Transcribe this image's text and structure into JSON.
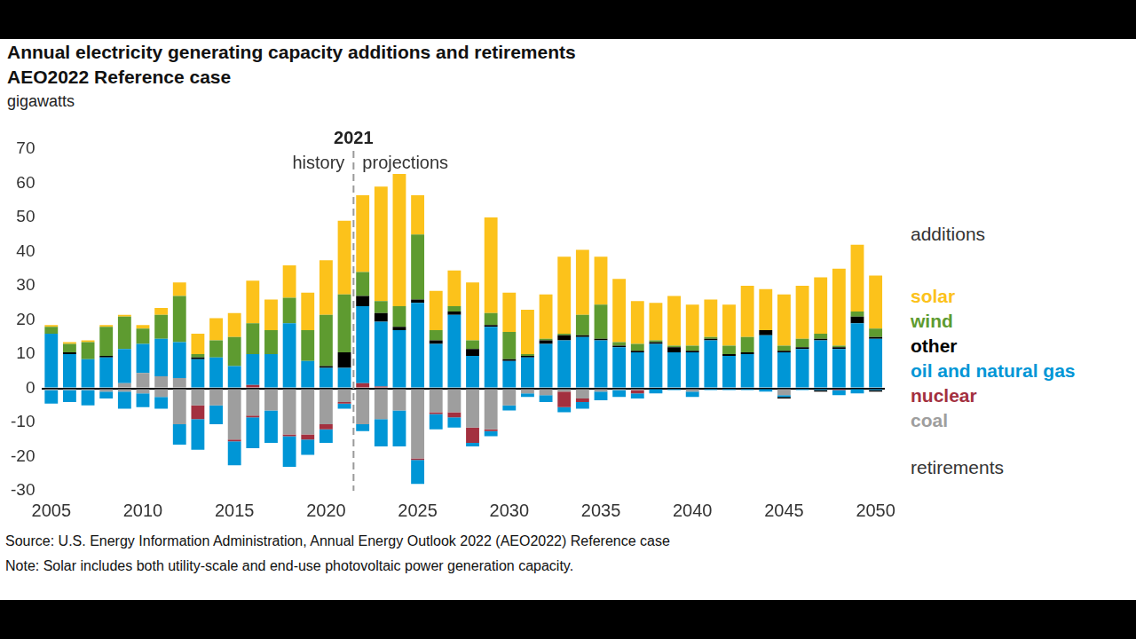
{
  "chart_data": {
    "type": "bar",
    "title": "Annual electricity generating capacity additions and retirements",
    "subtitle": "AEO2022 Reference case",
    "y_label": "gigawatts",
    "source": "Source: U.S. Energy Information Administration, Annual Energy Outlook 2022 (AEO2022) Reference case",
    "note": "Note: Solar includes both utility-scale and end-use photovoltaic power generation capacity.",
    "stacked": true,
    "grid": false,
    "legend": "right",
    "annotations": {
      "divider": {
        "value": 2021,
        "label": "2021"
      },
      "left_text": "history",
      "right_text": "projections",
      "upper_text": "additions",
      "lower_text": "retirements"
    },
    "categories": [
      "2005",
      null,
      null,
      null,
      null,
      "2010",
      null,
      null,
      null,
      null,
      "2015",
      null,
      null,
      null,
      null,
      "2020",
      null,
      null,
      null,
      null,
      "2025",
      null,
      null,
      null,
      null,
      "2030",
      null,
      null,
      null,
      null,
      "2035",
      null,
      null,
      null,
      null,
      "2040",
      null,
      null,
      null,
      null,
      "2045",
      null,
      null,
      null,
      null,
      "2050"
    ],
    "ylim": [
      -30,
      70
    ],
    "yticks": [
      -30,
      -20,
      -10,
      0,
      10,
      20,
      30,
      40,
      50,
      60,
      70
    ],
    "series": [
      {
        "name": "solar",
        "color": "#fcc21b",
        "values": [
          0.5,
          0.5,
          0.5,
          0.5,
          0.5,
          1,
          2,
          4,
          6,
          6.5,
          7,
          12.5,
          9,
          9.5,
          11,
          16,
          21.5,
          22.5,
          33.5,
          40,
          11.5,
          11.5,
          10.5,
          17,
          28,
          11.5,
          13,
          13,
          22.5,
          19,
          14,
          18.5,
          12.5,
          11,
          14.5,
          12,
          11,
          12,
          15,
          12,
          15,
          15.5,
          16.5,
          22.5,
          19.5,
          15.5
        ]
      },
      {
        "name": "wind",
        "color": "#5e9b30",
        "values": [
          2,
          2.5,
          5,
          8.5,
          9.5,
          4.5,
          7,
          13.5,
          1,
          5,
          8.5,
          9,
          7,
          7.5,
          9,
          15,
          17,
          7,
          3.5,
          6,
          19,
          3,
          1.5,
          2.5,
          3.5,
          8,
          0.5,
          0.5,
          0.5,
          6,
          10,
          1,
          2,
          0.5,
          0.5,
          1.5,
          0.5,
          2.5,
          4.5,
          0,
          1.5,
          2.5,
          1.5,
          0.5,
          1.5,
          2.5
        ]
      },
      {
        "name": "other",
        "color": "#000000",
        "values": [
          0,
          0.5,
          0,
          0.5,
          0,
          0,
          0,
          0,
          0.5,
          0,
          0,
          0,
          0,
          0,
          0,
          0.5,
          4.5,
          3,
          2.5,
          1,
          1,
          1,
          1,
          2,
          0.5,
          0.5,
          0.5,
          1,
          1.5,
          0.5,
          0.5,
          0.5,
          0.5,
          0.5,
          1.5,
          0.5,
          0.5,
          0.5,
          0.5,
          1.5,
          0.5,
          0.5,
          0.5,
          0.5,
          2,
          0.5
        ],
        "retirements": [
          0,
          0,
          0,
          0,
          0,
          0,
          0,
          0,
          0,
          0,
          0,
          0,
          0,
          0,
          0,
          0,
          0,
          0,
          0,
          0,
          0,
          0,
          0,
          0,
          0,
          0,
          0,
          0,
          0,
          0,
          0,
          0,
          0,
          0,
          0,
          0,
          0,
          0,
          0,
          0,
          -0.5,
          0,
          -0.5,
          0,
          0,
          -0.5
        ]
      },
      {
        "name": "oil and natural gas",
        "color": "#0096d6",
        "values": [
          16,
          10,
          8.5,
          9,
          10,
          8.5,
          11,
          10.5,
          8.5,
          9,
          6.5,
          9,
          10,
          19,
          8,
          6,
          6,
          22.5,
          19,
          17,
          25,
          13,
          21.5,
          9.5,
          18,
          8,
          9,
          13,
          14,
          15,
          14,
          12,
          10.5,
          13,
          10.5,
          10.5,
          14,
          9.5,
          10,
          15.5,
          10.5,
          11.5,
          14,
          11.5,
          19,
          14.5
        ],
        "retirements": [
          -4,
          -3.5,
          -4.5,
          -2,
          -5,
          -4,
          -3.5,
          -6,
          -9,
          -5.5,
          -7,
          -9,
          -9.5,
          -9,
          -4.5,
          -4,
          -1.5,
          -2,
          -8,
          -10.5,
          -7,
          -4.5,
          -3,
          -1,
          -1.5,
          -1.5,
          -1,
          -2,
          -1.5,
          -2,
          -2.5,
          -2,
          -1.5,
          -1.5,
          -0.5,
          -1.5,
          -0.5,
          -0.5,
          -0.5,
          -1,
          -0.5,
          -0.5,
          -0.5,
          -1.5,
          -1.5,
          -0.5
        ]
      },
      {
        "name": "nuclear",
        "color": "#a3303f",
        "values": [
          0,
          0,
          0,
          0,
          0,
          0,
          0,
          0,
          0,
          0,
          0,
          1,
          0,
          0,
          0,
          0,
          0,
          1.5,
          0.5,
          0,
          0,
          0,
          0,
          0,
          0,
          0,
          0,
          0,
          0,
          0,
          0,
          0,
          0,
          0,
          0,
          0,
          0,
          0,
          0,
          0,
          0,
          0,
          0,
          0,
          0,
          0
        ],
        "retirements": [
          0,
          0,
          0,
          0,
          0,
          0,
          0,
          0,
          -4,
          0,
          -0.5,
          -0.5,
          0,
          -0.5,
          -1.5,
          -1.5,
          -0.5,
          0,
          0,
          0,
          -0.5,
          -0.5,
          -1.5,
          -4.5,
          -0.5,
          0,
          0,
          0,
          -4.5,
          -1,
          0,
          0,
          -1,
          0,
          0,
          0,
          0,
          0,
          0,
          0,
          0,
          0,
          0,
          -0.5,
          0,
          0
        ]
      },
      {
        "name": "coal",
        "color": "#9e9e9e",
        "values": [
          0,
          0,
          0,
          0,
          1.5,
          4.5,
          3.5,
          3,
          0,
          0,
          0,
          0,
          0,
          0,
          0,
          0,
          0,
          0,
          0,
          0,
          0,
          0,
          0,
          0,
          0,
          0,
          0,
          0,
          0,
          0,
          0,
          0,
          0,
          0,
          0,
          0,
          0,
          0,
          0,
          0,
          0,
          0,
          0,
          0,
          0,
          0
        ],
        "retirements": [
          -0.5,
          -0.5,
          -0.5,
          -1,
          -1,
          -1.5,
          -2.5,
          -10.5,
          -5,
          -5,
          -15,
          -8,
          -6.5,
          -13.5,
          -13.5,
          -10.5,
          -4,
          -10.5,
          -9,
          -6.5,
          -20.5,
          -7,
          -7,
          -11.5,
          -12,
          -5,
          -1.5,
          -2,
          -1,
          -3,
          -1,
          -0.5,
          -0.5,
          0,
          0,
          -1,
          0,
          0,
          0,
          0,
          -2,
          0,
          0,
          0,
          0,
          0
        ]
      }
    ]
  }
}
